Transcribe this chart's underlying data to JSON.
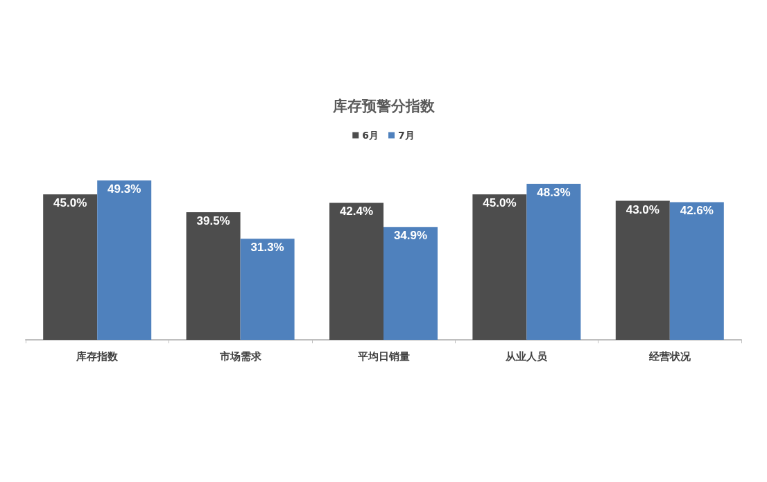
{
  "chart_data": {
    "type": "bar",
    "title": "库存预警分指数",
    "categories": [
      "库存指数",
      "市场需求",
      "平均日销量",
      "从业人员",
      "经营状况"
    ],
    "series": [
      {
        "name": "6月",
        "color": "#4d4d4d",
        "values": [
          45.0,
          39.5,
          42.4,
          45.0,
          43.0
        ],
        "value_labels": [
          "45.0%",
          "39.5%",
          "42.4%",
          "45.0%",
          "43.0%"
        ]
      },
      {
        "name": "7月",
        "color": "#4f81bd",
        "values": [
          49.3,
          31.3,
          34.9,
          48.3,
          42.6
        ],
        "value_labels": [
          "49.3%",
          "31.3%",
          "34.9%",
          "48.3%",
          "42.6%"
        ]
      }
    ],
    "legend": "top",
    "tick_labels": "x"
  }
}
